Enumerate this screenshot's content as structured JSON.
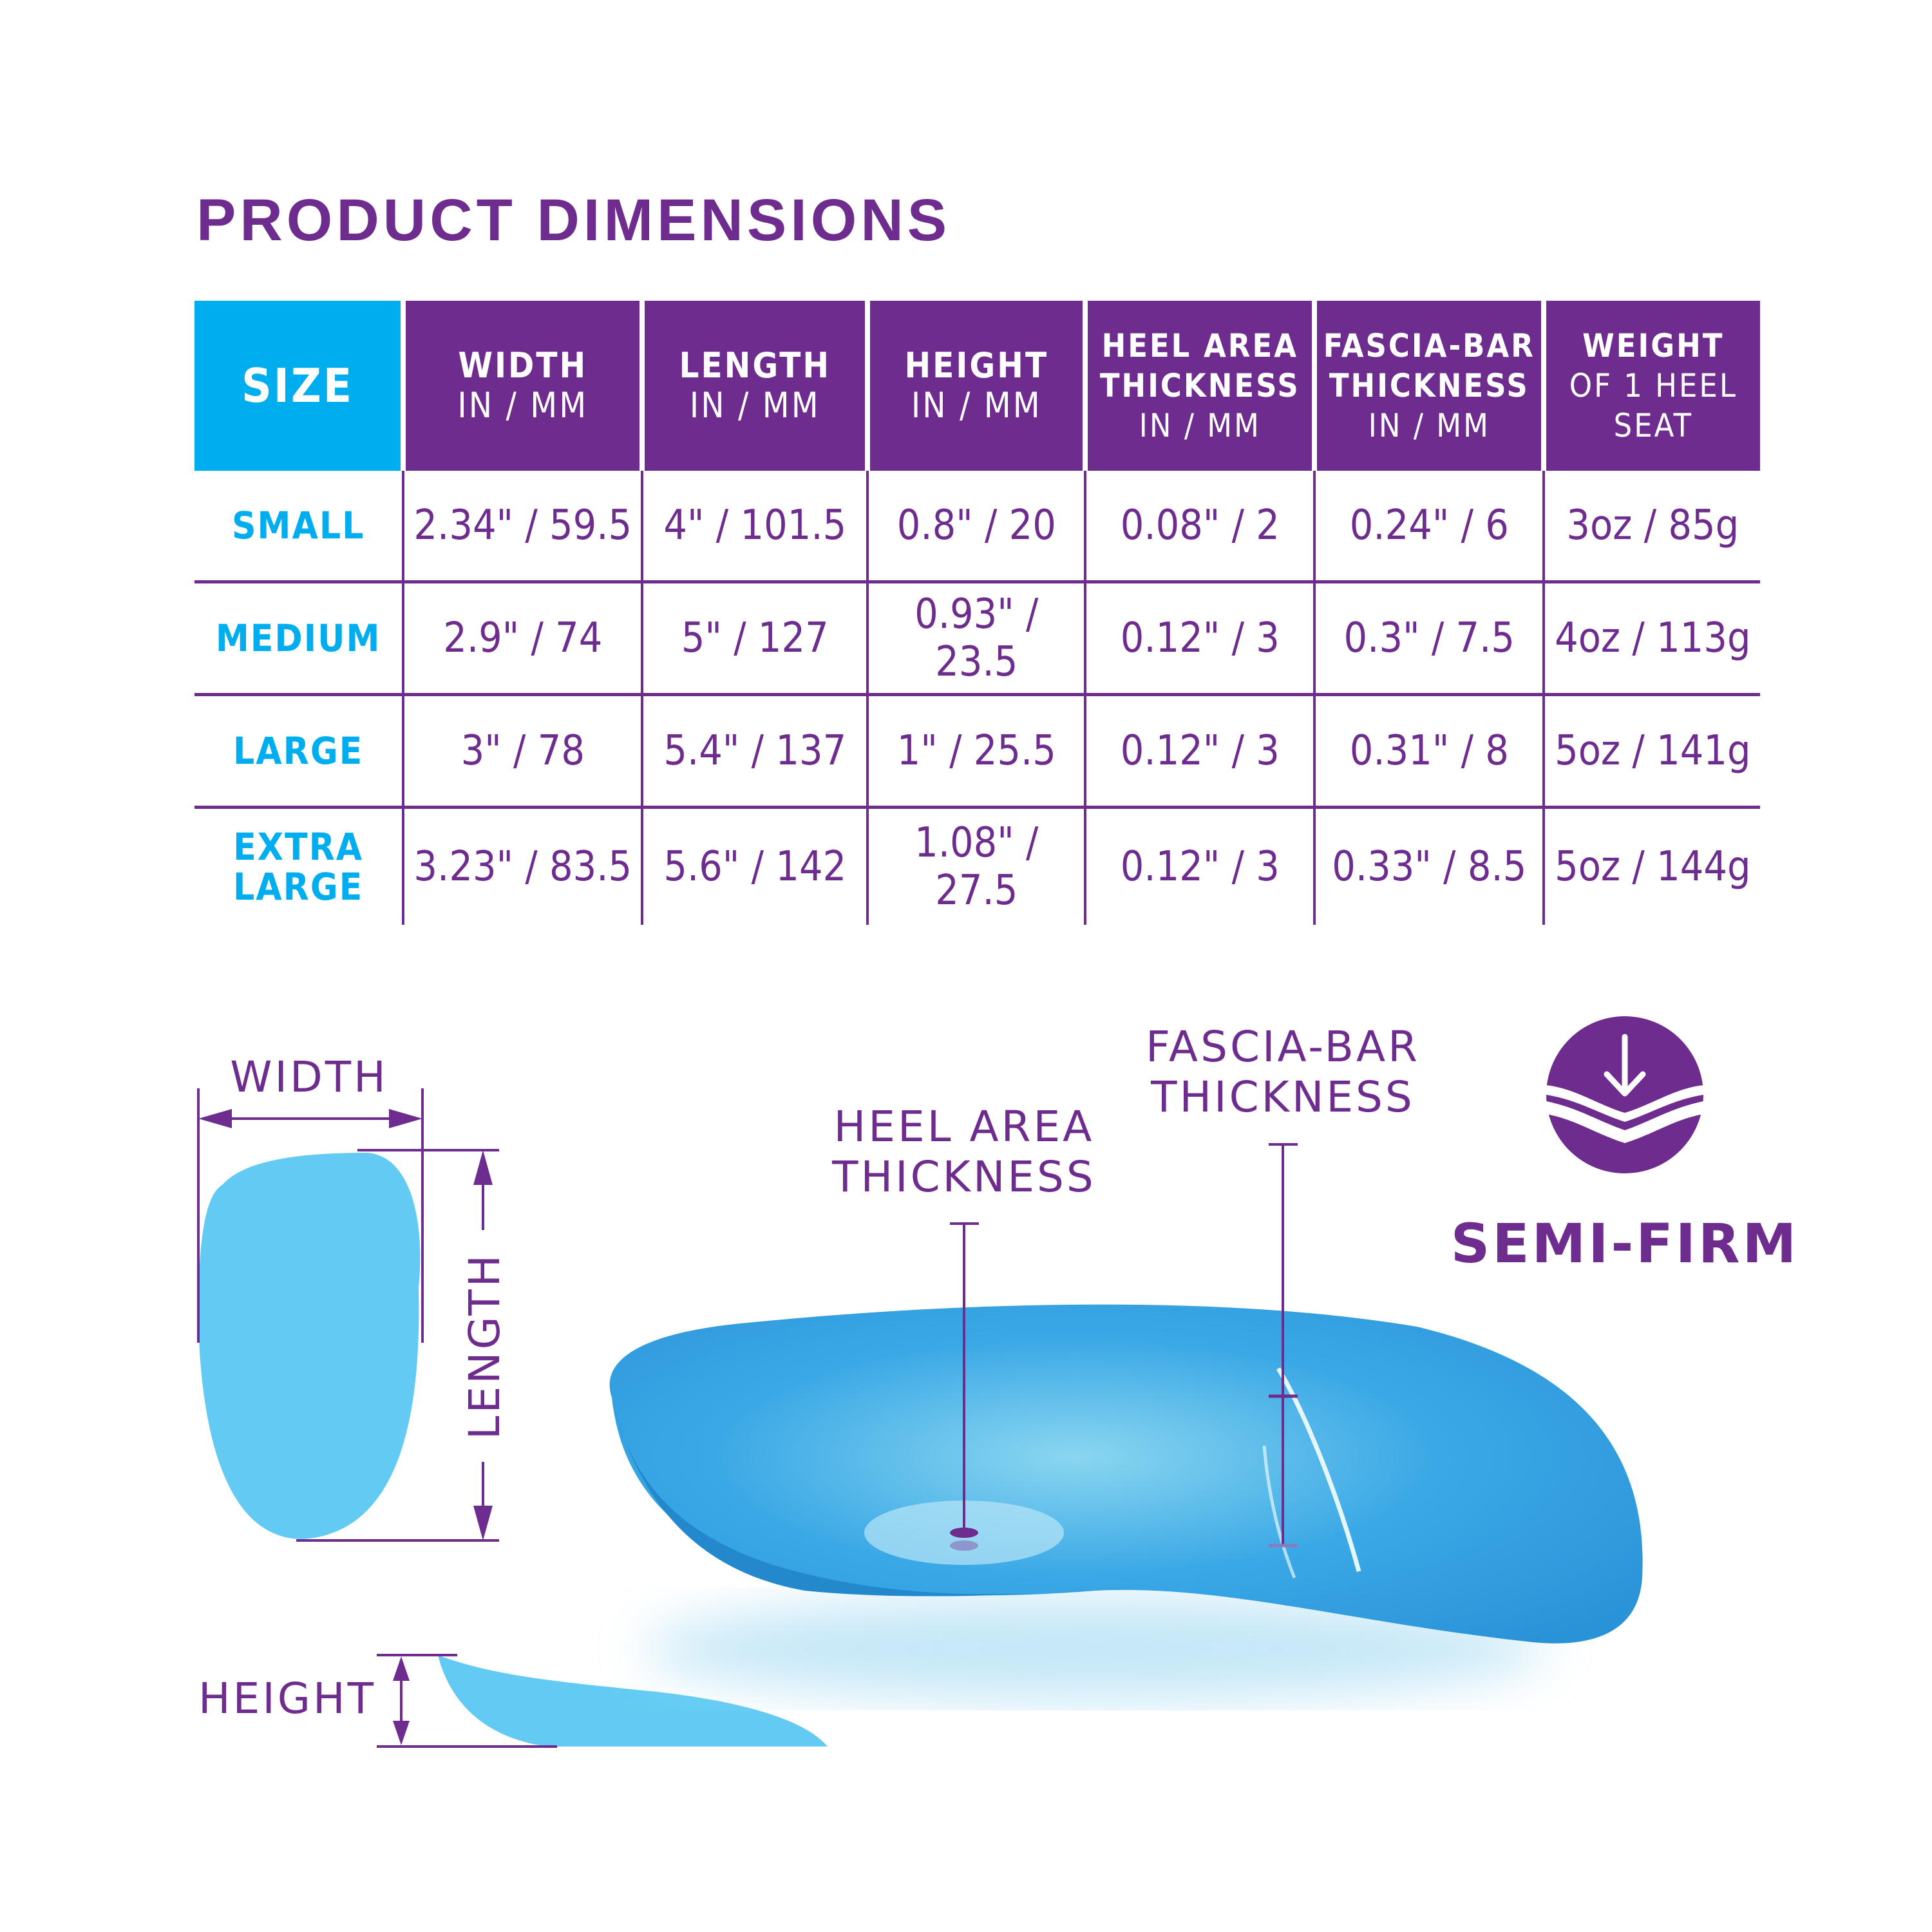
{
  "title": "PRODUCT DIMENSIONS",
  "table": {
    "headers": [
      {
        "line1": "SIZE",
        "line2": "",
        "line3": ""
      },
      {
        "line1": "WIDTH",
        "line2": "IN / MM",
        "line3": ""
      },
      {
        "line1": "LENGTH",
        "line2": "IN / MM",
        "line3": ""
      },
      {
        "line1": "HEIGHT",
        "line2": "IN / MM",
        "line3": ""
      },
      {
        "line1": "HEEL AREA",
        "line2": "THICKNESS",
        "line3": "IN / MM"
      },
      {
        "line1": "FASCIA-BAR",
        "line2": "THICKNESS",
        "line3": "IN / MM"
      },
      {
        "line1": "WEIGHT",
        "line2": "OF 1 HEEL",
        "line3": "SEAT"
      }
    ],
    "rows": [
      {
        "size": "SMALL",
        "cells": [
          "2.34\" / 59.5",
          "4\" / 101.5",
          "0.8\" / 20",
          "0.08\" / 2",
          "0.24\" / 6",
          "3oz / 85g"
        ]
      },
      {
        "size": "MEDIUM",
        "cells": [
          "2.9\" / 74",
          "5\" / 127",
          "0.93\" / 23.5",
          "0.12\" / 3",
          "0.3\" / 7.5",
          "4oz / 113g"
        ]
      },
      {
        "size": "LARGE",
        "cells": [
          "3\" / 78",
          "5.4\" / 137",
          "1\" / 25.5",
          "0.12\" / 3",
          "0.31\" / 8",
          "5oz / 141g"
        ]
      },
      {
        "size": "EXTRA LARGE",
        "cells": [
          "3.23\" / 83.5",
          "5.6\" / 142",
          "1.08\" / 27.5",
          "0.12\" / 3",
          "0.33\" / 8.5",
          "5oz / 144g"
        ]
      }
    ]
  },
  "diagram": {
    "width_label": "WIDTH",
    "length_label": "LENGTH",
    "height_label": "HEIGHT",
    "heel_area_label": [
      "HEEL AREA",
      "THICKNESS"
    ],
    "fascia_bar_label": [
      "FASCIA-BAR",
      "THICKNESS"
    ],
    "firmness_label": "SEMI-FIRM",
    "firmness_icon": "arrow-down-wave-icon"
  },
  "colors": {
    "purple": "#6f2c8f",
    "cyan": "#00aeef",
    "light_blue": "#63cbf3",
    "product_blue": "#2e9fe0"
  }
}
